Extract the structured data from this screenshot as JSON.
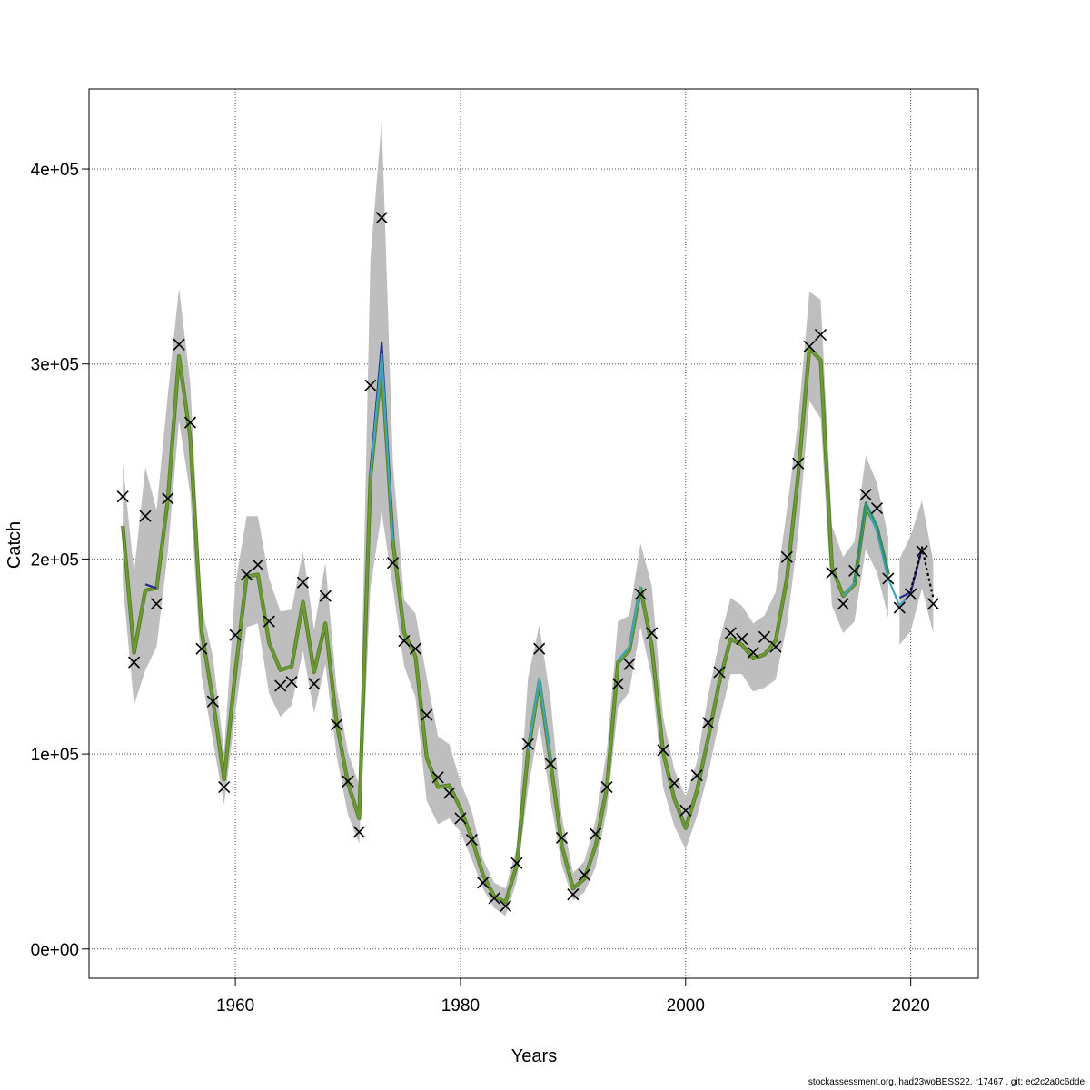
{
  "chart_data": {
    "type": "line",
    "xlabel": "Years",
    "ylabel": "Catch",
    "xlim": [
      1947,
      2026
    ],
    "ylim": [
      -15000,
      441000
    ],
    "x_ticks": [
      1960,
      1980,
      2000,
      2020
    ],
    "x_tick_labels": [
      "1960",
      "1980",
      "2000",
      "2020"
    ],
    "y_ticks": [
      0,
      100000,
      200000,
      300000,
      400000
    ],
    "y_tick_labels": [
      "0e+00",
      "1e+05",
      "2e+05",
      "3e+05",
      "4e+05"
    ],
    "grid": true,
    "colors": {
      "band": "#bebebe",
      "fit": "#6e9a33",
      "fit_edge": "#4e7a23",
      "peel_navy": "#2b2d8e",
      "peel_cyan": "#3fa5b8",
      "peel_teal": "#2e8f6e",
      "peel_dashed": "#000000",
      "observed": "#000000"
    },
    "years": [
      1950,
      1951,
      1952,
      1953,
      1954,
      1955,
      1956,
      1957,
      1958,
      1959,
      1960,
      1961,
      1962,
      1963,
      1964,
      1965,
      1966,
      1967,
      1968,
      1969,
      1970,
      1971,
      1972,
      1973,
      1974,
      1975,
      1976,
      1977,
      1978,
      1979,
      1980,
      1981,
      1982,
      1983,
      1984,
      1985,
      1986,
      1987,
      1988,
      1989,
      1990,
      1991,
      1992,
      1993,
      1994,
      1995,
      1996,
      1997,
      1998,
      1999,
      2000,
      2001,
      2002,
      2003,
      2004,
      2005,
      2006,
      2007,
      2008,
      2009,
      2010,
      2011,
      2012,
      2013,
      2014,
      2015,
      2016,
      2017,
      2018
    ],
    "observed": [
      232000,
      147000,
      222000,
      177000,
      231000,
      310000,
      270000,
      154000,
      127000,
      83000,
      161000,
      192000,
      197000,
      168000,
      135000,
      137000,
      188000,
      136000,
      181000,
      115000,
      86000,
      60000,
      289000,
      375000,
      198000,
      158000,
      154000,
      120000,
      88000,
      80000,
      67000,
      56000,
      34000,
      26000,
      22000,
      44000,
      105000,
      154000,
      95000,
      57000,
      28000,
      38000,
      59000,
      83000,
      136000,
      146000,
      182000,
      162000,
      102000,
      85000,
      71000,
      89000,
      116000,
      142000,
      162000,
      159000,
      152000,
      160000,
      155000,
      201000,
      249000,
      309000,
      315000,
      193000,
      177000,
      194000,
      233000,
      226000,
      190000
    ],
    "observed_recent": {
      "years": [
        2019,
        2020,
        2021,
        2022
      ],
      "values": [
        175000,
        182000,
        204000,
        177000
      ]
    },
    "fit": [
      217000,
      152000,
      184000,
      185000,
      230000,
      304000,
      262000,
      163000,
      128000,
      87000,
      142000,
      191000,
      192000,
      157000,
      143000,
      145000,
      178000,
      142000,
      167000,
      116000,
      85000,
      67000,
      242000,
      300000,
      209000,
      162000,
      150000,
      98000,
      83000,
      84000,
      72000,
      57000,
      38000,
      27000,
      24000,
      43000,
      101000,
      137000,
      96000,
      53000,
      31000,
      36000,
      53000,
      83000,
      147000,
      153000,
      185000,
      155000,
      101000,
      77000,
      62000,
      81000,
      108000,
      137000,
      159000,
      156000,
      149000,
      151000,
      158000,
      190000,
      243000,
      308000,
      302000,
      196000,
      181000,
      187000,
      227000,
      216000,
      192000
    ],
    "band_upper": [
      249000,
      193000,
      247000,
      225000,
      284000,
      339000,
      290000,
      176000,
      150000,
      101000,
      187000,
      222000,
      222000,
      190000,
      173000,
      174000,
      204000,
      164000,
      198000,
      134000,
      101000,
      84000,
      354000,
      425000,
      249000,
      179000,
      172000,
      139000,
      109000,
      105000,
      86000,
      71000,
      46000,
      34000,
      31000,
      52000,
      139000,
      166000,
      128000,
      68000,
      39000,
      45000,
      66000,
      102000,
      168000,
      171000,
      208000,
      186000,
      119000,
      92000,
      78000,
      96000,
      130000,
      158000,
      180000,
      176000,
      167000,
      171000,
      183000,
      225000,
      271000,
      337000,
      333000,
      217000,
      201000,
      209000,
      253000,
      239000,
      211000
    ],
    "band_lower": [
      187000,
      125000,
      143000,
      155000,
      203000,
      271000,
      233000,
      140000,
      107000,
      74000,
      121000,
      165000,
      167000,
      131000,
      119000,
      125000,
      153000,
      121000,
      146000,
      99000,
      69000,
      54000,
      185000,
      224000,
      185000,
      145000,
      129000,
      76000,
      64000,
      67000,
      60000,
      46000,
      31000,
      21000,
      17000,
      35000,
      82000,
      115000,
      76000,
      43000,
      25000,
      29000,
      42000,
      71000,
      124000,
      132000,
      165000,
      139000,
      83000,
      63000,
      51000,
      68000,
      90000,
      117000,
      141000,
      141000,
      132000,
      134000,
      138000,
      166000,
      212000,
      281000,
      272000,
      176000,
      162000,
      168000,
      205000,
      193000,
      170000
    ],
    "band_recent": {
      "years": [
        2019,
        2020,
        2021,
        2022
      ],
      "upper": [
        200000,
        212000,
        230000,
        199000
      ],
      "lower": [
        156000,
        163000,
        185000,
        162000
      ]
    },
    "retro_peels": [
      {
        "style": "solid",
        "color": "peel_navy",
        "years": [
          1952,
          1953
        ],
        "values": [
          187000,
          185000
        ]
      },
      {
        "style": "solid",
        "color": "peel_navy",
        "years": [
          1972,
          1973,
          1974
        ],
        "values": [
          245000,
          311000,
          210000
        ]
      },
      {
        "style": "solid",
        "color": "peel_cyan",
        "years": [
          1972,
          1973,
          1974
        ],
        "values": [
          243000,
          305000,
          209000
        ]
      },
      {
        "style": "solid",
        "color": "peel_cyan",
        "years": [
          1986,
          1987,
          1988
        ],
        "values": [
          102000,
          139000,
          97000
        ]
      },
      {
        "style": "solid",
        "color": "peel_cyan",
        "years": [
          1994,
          1995,
          1996
        ],
        "values": [
          148000,
          155000,
          186000
        ]
      },
      {
        "style": "solid",
        "color": "peel_cyan",
        "years": [
          2014,
          2015,
          2016,
          2017,
          2018,
          2019,
          2020
        ],
        "values": [
          181000,
          188000,
          228000,
          214000,
          190000,
          176000,
          182000
        ]
      },
      {
        "style": "solid",
        "color": "peel_teal",
        "years": [
          2015,
          2016,
          2017,
          2018
        ],
        "values": [
          188000,
          229000,
          217000,
          193000
        ]
      },
      {
        "style": "solid",
        "color": "peel_navy",
        "years": [
          2019,
          2020,
          2021
        ],
        "values": [
          180000,
          183000,
          205000
        ]
      },
      {
        "style": "dashed",
        "color": "peel_dashed",
        "years": [
          2020,
          2021,
          2022
        ],
        "values": [
          184000,
          206000,
          180000
        ]
      }
    ]
  },
  "footer_text": "stockassessment.org, had23woBESS22, r17467 , git: ec2c2a0c6dde"
}
